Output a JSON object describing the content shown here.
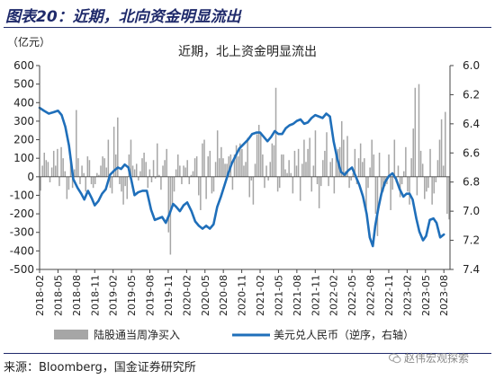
{
  "figure": {
    "title": "图表20：近期，北向资金明显流出",
    "source": "来源：Bloomberg，国金证券研究所",
    "watermark": "赵伟宏观探索"
  },
  "chart_data": {
    "type": "bar+line",
    "title": "近期，北上资金明显流出",
    "left_axis_unit": "（亿元）",
    "left_ylim": [
      -500,
      600
    ],
    "left_ticks": [
      "600",
      "500",
      "400",
      "300",
      "200",
      "100",
      "0",
      "-100",
      "-200",
      "-300",
      "-400",
      "-500"
    ],
    "right_ylim": [
      6.0,
      7.4
    ],
    "right_inverted": true,
    "right_ticks": [
      "6.0",
      "6.2",
      "6.4",
      "6.6",
      "6.8",
      "7.0",
      "7.2",
      "7.4"
    ],
    "x_ticks": [
      "2018-02",
      "2018-05",
      "2018-08",
      "2018-11",
      "2019-02",
      "2019-05",
      "2019-08",
      "2019-11",
      "2020-02",
      "2020-05",
      "2020-08",
      "2020-11",
      "2021-02",
      "2021-05",
      "2021-08",
      "2021-11",
      "2022-02",
      "2022-05",
      "2022-08",
      "2022-11",
      "2023-02",
      "2023-05",
      "2023-08"
    ],
    "x_range_months": 67,
    "legend": [
      {
        "name": "陆股通当周净买入",
        "color": "#a6a6a6",
        "kind": "bar"
      },
      {
        "name": "美元兑人民币（逆序，右轴）",
        "color": "#1f6fba",
        "kind": "line"
      }
    ],
    "series": [
      {
        "name": "陆股通当周净买入",
        "axis": "left",
        "values": [
          -75,
          60,
          130,
          90,
          80,
          -30,
          50,
          140,
          60,
          150,
          -50,
          160,
          100,
          30,
          -120,
          -70,
          80,
          -60,
          40,
          360,
          100,
          -40,
          60,
          20,
          -80,
          110,
          90,
          -40,
          -60,
          -40,
          20,
          10,
          60,
          110,
          100,
          50,
          200,
          -60,
          -90,
          270,
          120,
          320,
          -40,
          -80,
          -150,
          -50,
          -120,
          120,
          200,
          60,
          40,
          70,
          -20,
          30,
          100,
          130,
          80,
          -60,
          40,
          -30,
          90,
          -10,
          180,
          10,
          -70,
          60,
          90,
          150,
          -300,
          -420,
          -150,
          -80,
          40,
          120,
          60,
          -40,
          60,
          50,
          90,
          -40,
          10,
          30,
          100,
          110,
          -100,
          -180,
          180,
          200,
          -120,
          110,
          140,
          -90,
          -80,
          80,
          250,
          100,
          160,
          100,
          70,
          70,
          110,
          120,
          -70,
          120,
          170,
          110,
          180,
          150,
          60,
          80,
          210,
          -110,
          -20,
          -150,
          70,
          230,
          280,
          240,
          120,
          -60,
          60,
          -20,
          80,
          180,
          170,
          480,
          -80,
          -60,
          120,
          120,
          40,
          20,
          90,
          20,
          -90,
          140,
          60,
          150,
          -130,
          70,
          200,
          80,
          150,
          210,
          -80,
          60,
          250,
          -40,
          -170,
          -50,
          90,
          140,
          240,
          -50,
          80,
          100,
          -90,
          120,
          150,
          160,
          300,
          200,
          30,
          220,
          -60,
          -20,
          20,
          150,
          -40,
          100,
          180,
          80,
          100,
          -180,
          -60,
          50,
          200,
          120,
          -200,
          -320,
          130,
          -100,
          -80,
          -50,
          -40,
          120,
          -180,
          -70,
          200,
          -30,
          60,
          -110,
          -40,
          30,
          160,
          -80,
          -150,
          100,
          260,
          480,
          -100,
          500,
          140,
          70,
          -120,
          -80,
          -60,
          150,
          -150,
          -90,
          -30,
          90,
          200,
          310,
          60,
          350,
          -200,
          -230
        ],
        "x_start": 0,
        "x_end": 67
      },
      {
        "name": "美元兑人民币（逆序，右轴）",
        "axis": "right",
        "points": [
          [
            0,
            6.29
          ],
          [
            0.7,
            6.31
          ],
          [
            1.5,
            6.33
          ],
          [
            2.3,
            6.32
          ],
          [
            3.0,
            6.31
          ],
          [
            3.6,
            6.34
          ],
          [
            4.2,
            6.42
          ],
          [
            4.8,
            6.55
          ],
          [
            5.5,
            6.78
          ],
          [
            6.2,
            6.84
          ],
          [
            6.8,
            6.88
          ],
          [
            7.3,
            6.92
          ],
          [
            7.9,
            6.86
          ],
          [
            8.5,
            6.91
          ],
          [
            9.0,
            6.96
          ],
          [
            9.6,
            6.93
          ],
          [
            10.2,
            6.88
          ],
          [
            10.8,
            6.85
          ],
          [
            11.5,
            6.75
          ],
          [
            12.2,
            6.72
          ],
          [
            12.8,
            6.7
          ],
          [
            13.3,
            6.71
          ],
          [
            13.9,
            6.68
          ],
          [
            14.5,
            6.7
          ],
          [
            15.0,
            6.79
          ],
          [
            15.5,
            6.89
          ],
          [
            16.1,
            6.87
          ],
          [
            16.8,
            6.86
          ],
          [
            17.5,
            6.86
          ],
          [
            18.2,
            6.99
          ],
          [
            18.8,
            7.06
          ],
          [
            19.4,
            7.05
          ],
          [
            20.0,
            7.04
          ],
          [
            20.6,
            7.08
          ],
          [
            21.2,
            7.02
          ],
          [
            21.8,
            6.95
          ],
          [
            22.3,
            6.97
          ],
          [
            22.9,
            7.0
          ],
          [
            23.5,
            6.96
          ],
          [
            24.1,
            6.94
          ],
          [
            24.8,
            7.0
          ],
          [
            25.4,
            7.07
          ],
          [
            26.0,
            7.1
          ],
          [
            26.6,
            7.12
          ],
          [
            27.2,
            7.1
          ],
          [
            27.8,
            7.12
          ],
          [
            28.4,
            7.09
          ],
          [
            29.0,
            6.97
          ],
          [
            29.6,
            6.9
          ],
          [
            30.2,
            6.82
          ],
          [
            30.8,
            6.74
          ],
          [
            31.4,
            6.67
          ],
          [
            32.0,
            6.62
          ],
          [
            32.6,
            6.57
          ],
          [
            33.3,
            6.54
          ],
          [
            34.0,
            6.51
          ],
          [
            34.7,
            6.47
          ],
          [
            35.4,
            6.46
          ],
          [
            36.0,
            6.46
          ],
          [
            36.6,
            6.49
          ],
          [
            37.2,
            6.52
          ],
          [
            37.8,
            6.49
          ],
          [
            38.4,
            6.45
          ],
          [
            39.0,
            6.47
          ],
          [
            39.6,
            6.47
          ],
          [
            40.2,
            6.43
          ],
          [
            40.8,
            6.41
          ],
          [
            41.4,
            6.4
          ],
          [
            42.0,
            6.38
          ],
          [
            42.6,
            6.37
          ],
          [
            43.2,
            6.4
          ],
          [
            43.8,
            6.39
          ],
          [
            44.4,
            6.36
          ],
          [
            45.0,
            6.34
          ],
          [
            45.6,
            6.35
          ],
          [
            46.2,
            6.36
          ],
          [
            46.8,
            6.33
          ],
          [
            47.4,
            6.35
          ],
          [
            48.0,
            6.52
          ],
          [
            48.6,
            6.64
          ],
          [
            49.2,
            6.73
          ],
          [
            49.8,
            6.75
          ],
          [
            50.4,
            6.72
          ],
          [
            51.0,
            6.7
          ],
          [
            51.6,
            6.76
          ],
          [
            52.2,
            6.82
          ],
          [
            52.8,
            6.9
          ],
          [
            53.4,
            7.02
          ],
          [
            53.9,
            7.18
          ],
          [
            54.4,
            7.24
          ],
          [
            54.8,
            7.1
          ],
          [
            55.3,
            6.98
          ],
          [
            55.8,
            6.88
          ],
          [
            56.4,
            6.8
          ],
          [
            57.0,
            6.76
          ],
          [
            57.6,
            6.74
          ],
          [
            58.2,
            6.78
          ],
          [
            58.8,
            6.85
          ],
          [
            59.4,
            6.9
          ],
          [
            59.9,
            6.88
          ],
          [
            60.4,
            6.88
          ],
          [
            60.9,
            6.92
          ],
          [
            61.5,
            7.05
          ],
          [
            62.0,
            7.14
          ],
          [
            62.6,
            7.2
          ],
          [
            63.1,
            7.17
          ],
          [
            63.7,
            7.06
          ],
          [
            64.3,
            7.05
          ],
          [
            64.8,
            7.08
          ],
          [
            65.4,
            7.18
          ],
          [
            66.0,
            7.16
          ]
        ]
      }
    ]
  }
}
